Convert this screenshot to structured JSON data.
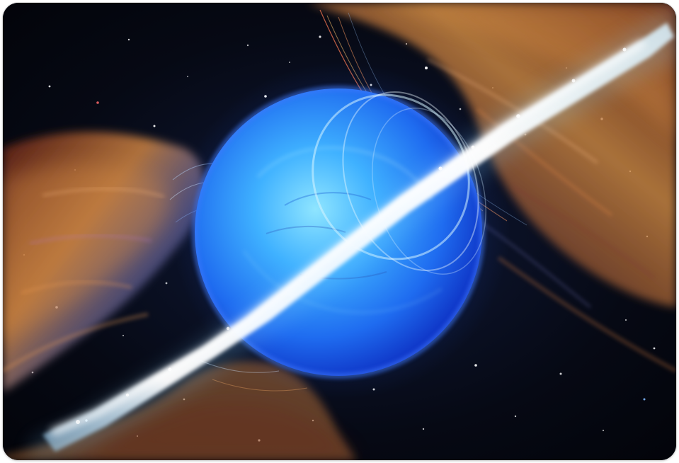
{
  "image": {
    "subject": "blue-star-with-polar-jets-icon",
    "colors": {
      "space": "#050712",
      "star_core": "#7fd6ff",
      "star_mid": "#2f8df4",
      "star_edge": "#0f3fd4",
      "jet": "#f3fbff",
      "nebula_warm": "#d58a45",
      "nebula_red": "#9e3522",
      "nebula_violet": "#8d8fe0"
    }
  }
}
